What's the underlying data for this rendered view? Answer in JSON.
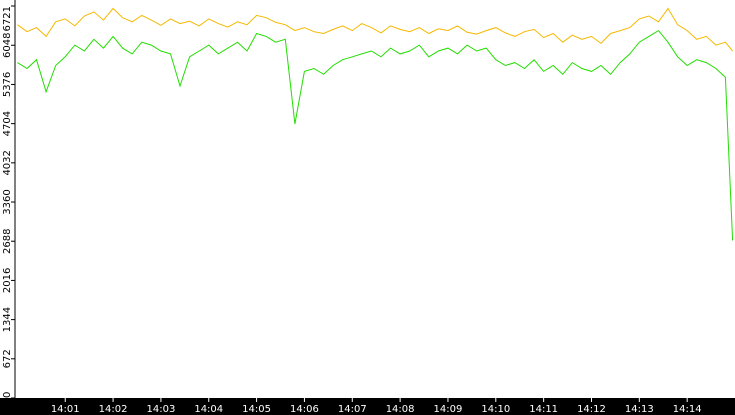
{
  "chart_data": {
    "type": "line",
    "x": [
      0,
      0.2,
      0.4,
      0.6,
      0.8,
      1.0,
      1.2,
      1.4,
      1.6,
      1.8,
      2.0,
      2.2,
      2.4,
      2.6,
      2.8,
      3.0,
      3.2,
      3.4,
      3.6,
      3.8,
      4.0,
      4.2,
      4.4,
      4.6,
      4.8,
      5.0,
      5.2,
      5.4,
      5.6,
      5.8,
      6.0,
      6.2,
      6.4,
      6.6,
      6.8,
      7.0,
      7.2,
      7.4,
      7.6,
      7.8,
      8.0,
      8.2,
      8.4,
      8.6,
      8.8,
      9.0,
      9.2,
      9.4,
      9.6,
      9.8,
      10.0,
      10.2,
      10.4,
      10.6,
      10.8,
      11.0,
      11.2,
      11.4,
      11.6,
      11.8,
      12.0,
      12.2,
      12.4,
      12.6,
      12.8,
      13.0,
      13.2,
      13.4,
      13.6,
      13.8,
      14.0,
      14.2,
      14.4,
      14.6,
      14.8,
      14.95
    ],
    "series": [
      {
        "color": "#f5b800",
        "values": [
          6400,
          6280,
          6350,
          6200,
          6450,
          6500,
          6380,
          6550,
          6620,
          6480,
          6680,
          6520,
          6450,
          6560,
          6480,
          6390,
          6500,
          6420,
          6460,
          6380,
          6500,
          6420,
          6360,
          6450,
          6400,
          6560,
          6520,
          6440,
          6400,
          6300,
          6350,
          6280,
          6250,
          6320,
          6380,
          6300,
          6420,
          6350,
          6260,
          6380,
          6320,
          6280,
          6350,
          6250,
          6330,
          6300,
          6380,
          6270,
          6240,
          6300,
          6350,
          6260,
          6200,
          6280,
          6320,
          6180,
          6250,
          6100,
          6220,
          6150,
          6200,
          6080,
          6250,
          6300,
          6350,
          6500,
          6550,
          6450,
          6680,
          6400,
          6300,
          6150,
          6200,
          6050,
          6100,
          5950
        ]
      },
      {
        "color": "#22dd00",
        "values": [
          5750,
          5650,
          5800,
          5250,
          5700,
          5850,
          6050,
          5950,
          6150,
          6000,
          6200,
          6000,
          5900,
          6100,
          6050,
          5950,
          5900,
          5350,
          5850,
          5950,
          6050,
          5900,
          6000,
          6100,
          5950,
          6250,
          6200,
          6100,
          6150,
          4700,
          5600,
          5650,
          5550,
          5700,
          5800,
          5850,
          5900,
          5950,
          5850,
          6000,
          5900,
          5950,
          6050,
          5850,
          5950,
          6000,
          5900,
          6050,
          5950,
          6000,
          5800,
          5700,
          5750,
          5650,
          5800,
          5600,
          5700,
          5550,
          5750,
          5650,
          5600,
          5700,
          5550,
          5750,
          5900,
          6100,
          6200,
          6300,
          6100,
          5850,
          5700,
          5800,
          5750,
          5650,
          5500,
          2700
        ]
      }
    ],
    "xlim": [
      -0.05,
      15
    ],
    "xticks": [
      {
        "value": 1,
        "label": "14:01"
      },
      {
        "value": 2,
        "label": "14:02"
      },
      {
        "value": 3,
        "label": "14:03"
      },
      {
        "value": 4,
        "label": "14:04"
      },
      {
        "value": 5,
        "label": "14:05"
      },
      {
        "value": 6,
        "label": "14:06"
      },
      {
        "value": 7,
        "label": "14:07"
      },
      {
        "value": 8,
        "label": "14:08"
      },
      {
        "value": 9,
        "label": "14:09"
      },
      {
        "value": 10,
        "label": "14:10"
      },
      {
        "value": 11,
        "label": "14:11"
      },
      {
        "value": 12,
        "label": "14:12"
      },
      {
        "value": 13,
        "label": "14:13"
      },
      {
        "value": 14,
        "label": "14:14"
      }
    ],
    "ylim": [
      0,
      6721
    ],
    "yticks": [
      0,
      672,
      1344,
      2016,
      2688,
      3360,
      4032,
      4704,
      5376,
      6048,
      6721
    ]
  }
}
